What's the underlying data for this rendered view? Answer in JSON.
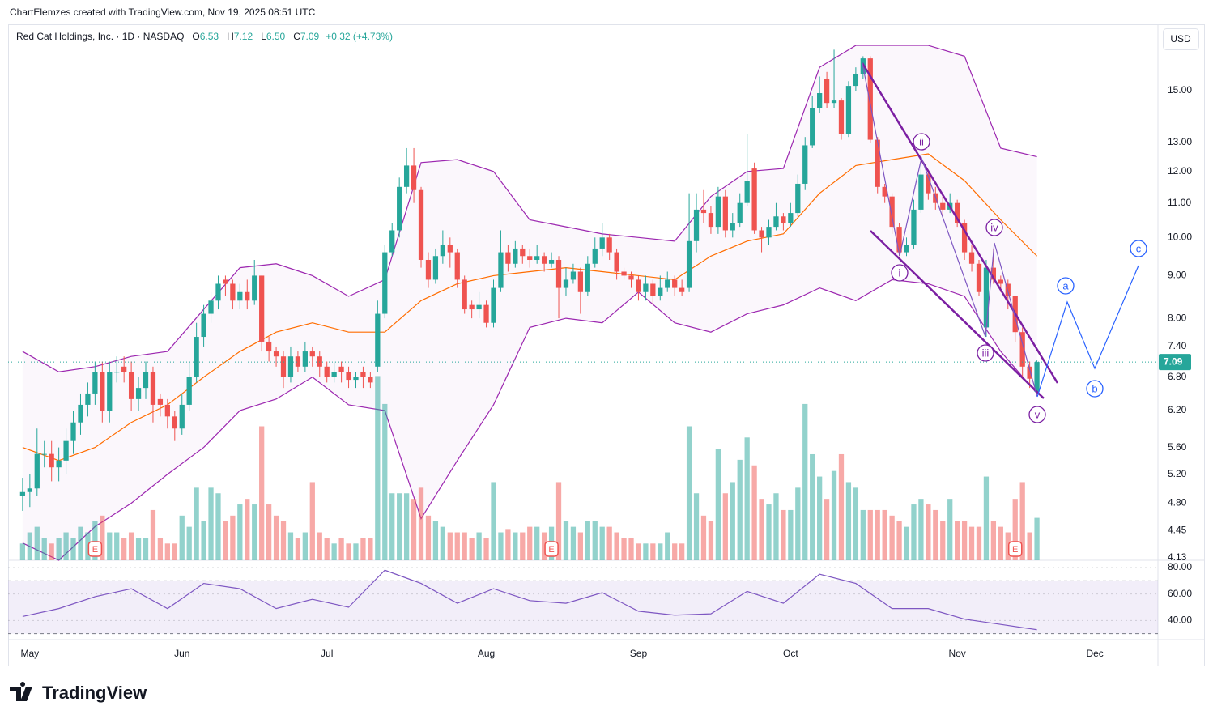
{
  "header": {
    "attribution": "ChartElemzes created with TradingView.com, Nov 19, 2025 08:51 UTC"
  },
  "chart_data": {
    "type": "candlestick",
    "title": "Red Cat Holdings, Inc. · 1D · NASDAQ",
    "legend": [
      {
        "label": "O",
        "value": "6.53"
      },
      {
        "label": "H",
        "value": "7.12"
      },
      {
        "label": "L",
        "value": "6.50"
      },
      {
        "label": "C",
        "value": "7.09"
      }
    ],
    "change": "+0.32 (+4.73%)",
    "currency": "USD",
    "colors": {
      "up": "#26a69a",
      "down": "#ef5350"
    },
    "open": [
      4.9,
      4.95,
      5.0,
      5.5,
      5.5,
      5.3,
      5.4,
      5.7,
      6.0,
      6.3,
      6.5,
      6.9,
      6.2,
      6.9,
      7.0,
      6.9,
      6.4,
      6.6,
      6.9,
      6.4,
      6.3,
      6.1,
      5.9,
      6.3,
      6.8,
      7.6,
      8.1,
      8.4,
      8.9,
      8.8,
      8.4,
      8.6,
      8.4,
      9.0,
      7.5,
      7.3,
      7.2,
      6.8,
      7.2,
      7.0,
      7.3,
      7.2,
      7.0,
      6.8,
      7.0,
      6.9,
      6.75,
      6.9,
      6.8,
      7.0,
      8.1,
      9.6,
      10.2,
      11.5,
      12.2,
      11.4,
      9.4,
      8.9,
      9.5,
      9.8,
      9.6,
      8.9,
      8.3,
      8.2,
      8.3,
      7.9,
      8.7,
      9.6,
      9.3,
      9.7,
      9.5,
      9.4,
      9.5,
      9.3,
      9.4,
      8.7,
      8.9,
      9.1,
      8.6,
      9.3,
      9.7,
      10.0,
      9.6,
      9.1,
      9.0,
      8.9,
      8.6,
      8.8,
      8.5,
      8.7,
      8.9,
      8.7,
      8.7,
      9.9,
      10.8,
      10.7,
      10.3,
      11.2,
      10.2,
      10.4,
      11.0,
      12.1,
      10.2,
      10.0,
      10.3,
      10.6,
      10.4,
      10.7,
      11.6,
      12.9,
      14.3,
      15.5,
      14.5,
      14.6,
      13.3,
      15.2,
      15.7,
      16.4,
      13.1,
      11.5,
      11.2,
      10.3,
      9.6,
      9.8,
      10.8,
      11.9,
      11.3,
      11.0,
      10.8,
      11.0,
      10.4,
      9.6,
      9.3,
      7.8,
      9.2,
      8.9,
      8.8,
      8.5,
      7.7,
      7.0,
      6.53
    ],
    "high": [
      5.15,
      5.2,
      5.9,
      5.7,
      5.7,
      5.6,
      5.9,
      6.2,
      6.5,
      6.7,
      7.1,
      7.1,
      7.1,
      7.2,
      7.2,
      7.1,
      6.8,
      7.1,
      7.0,
      6.5,
      6.4,
      6.2,
      6.5,
      7.1,
      7.9,
      8.3,
      8.6,
      9.0,
      9.0,
      8.9,
      8.8,
      8.9,
      9.4,
      9.0,
      7.6,
      7.4,
      7.3,
      7.4,
      7.3,
      7.5,
      7.4,
      7.3,
      7.1,
      7.1,
      7.1,
      7.0,
      6.9,
      7.0,
      6.9,
      8.4,
      9.8,
      10.4,
      11.8,
      12.8,
      12.8,
      11.5,
      9.6,
      9.7,
      10.2,
      10.0,
      9.7,
      9.0,
      8.4,
      8.6,
      8.4,
      8.9,
      10.2,
      9.8,
      9.9,
      9.8,
      9.7,
      9.8,
      9.6,
      9.6,
      9.5,
      9.2,
      9.3,
      9.2,
      9.5,
      10.0,
      10.4,
      10.1,
      9.7,
      9.2,
      9.1,
      9.0,
      9.0,
      8.9,
      9.0,
      9.1,
      9.0,
      8.9,
      11.3,
      11.3,
      11.4,
      10.9,
      11.5,
      11.4,
      10.7,
      11.3,
      13.3,
      12.3,
      10.3,
      10.5,
      11.0,
      10.7,
      11.0,
      11.9,
      13.2,
      14.8,
      15.6,
      15.8,
      16.8,
      14.7,
      15.4,
      16.0,
      16.5,
      16.5,
      13.2,
      11.6,
      11.3,
      10.4,
      10.0,
      11.1,
      12.3,
      12.0,
      11.5,
      11.2,
      11.3,
      11.1,
      10.5,
      9.8,
      9.4,
      9.4,
      9.7,
      9.0,
      8.9,
      8.5,
      7.8,
      7.1,
      7.12
    ],
    "low": [
      4.7,
      4.75,
      4.9,
      5.3,
      5.1,
      5.1,
      5.2,
      5.5,
      5.8,
      6.1,
      6.3,
      6.0,
      6.0,
      6.7,
      6.7,
      6.2,
      6.2,
      6.4,
      6.0,
      6.1,
      5.9,
      5.7,
      5.8,
      6.2,
      6.7,
      7.4,
      7.9,
      8.2,
      8.5,
      8.2,
      8.2,
      8.2,
      8.3,
      7.3,
      7.1,
      7.0,
      6.6,
      6.7,
      6.9,
      6.9,
      7.0,
      6.8,
      6.7,
      6.7,
      6.7,
      6.6,
      6.6,
      6.6,
      6.6,
      6.9,
      8.0,
      9.5,
      10.0,
      11.3,
      11.0,
      9.2,
      8.7,
      8.8,
      9.3,
      9.2,
      8.7,
      8.1,
      8.0,
      8.0,
      7.8,
      7.8,
      8.6,
      9.1,
      9.2,
      9.3,
      9.2,
      9.3,
      9.1,
      9.2,
      8.0,
      8.5,
      8.8,
      8.1,
      8.5,
      9.2,
      9.5,
      9.4,
      8.9,
      8.9,
      8.7,
      8.4,
      8.4,
      8.3,
      8.4,
      8.6,
      8.5,
      8.5,
      8.6,
      9.6,
      10.4,
      10.1,
      10.1,
      10.0,
      10.0,
      10.3,
      10.9,
      10.1,
      9.6,
      9.8,
      10.2,
      10.2,
      10.3,
      10.6,
      11.4,
      12.8,
      14.1,
      14.3,
      14.3,
      13.1,
      13.2,
      15.0,
      15.5,
      13.0,
      11.3,
      11.0,
      10.1,
      9.5,
      9.5,
      9.7,
      10.7,
      11.1,
      10.8,
      10.6,
      10.7,
      10.3,
      9.4,
      9.1,
      8.5,
      7.6,
      8.8,
      8.6,
      8.2,
      7.5,
      6.8,
      6.6,
      6.5
    ],
    "close": [
      4.95,
      5.0,
      5.5,
      5.5,
      5.3,
      5.4,
      5.7,
      6.0,
      6.3,
      6.5,
      6.9,
      6.2,
      6.9,
      6.9,
      6.9,
      6.4,
      6.6,
      6.9,
      6.3,
      6.3,
      6.1,
      5.9,
      6.3,
      6.8,
      7.6,
      8.1,
      8.4,
      8.8,
      8.8,
      8.4,
      8.6,
      8.4,
      9.0,
      7.5,
      7.3,
      7.2,
      6.8,
      7.2,
      7.0,
      7.3,
      7.2,
      7.0,
      6.8,
      6.9,
      6.9,
      6.75,
      6.8,
      6.8,
      6.7,
      8.1,
      9.6,
      10.2,
      11.5,
      12.2,
      11.4,
      9.4,
      8.9,
      9.5,
      9.8,
      9.6,
      8.9,
      8.2,
      8.2,
      8.3,
      7.9,
      8.7,
      9.6,
      9.3,
      9.7,
      9.5,
      9.4,
      9.5,
      9.3,
      9.4,
      8.7,
      8.9,
      9.1,
      8.6,
      9.3,
      9.7,
      10.0,
      9.6,
      9.1,
      9.0,
      8.9,
      8.6,
      8.8,
      8.5,
      8.7,
      8.9,
      8.7,
      8.6,
      9.9,
      10.8,
      10.7,
      10.3,
      11.2,
      10.2,
      10.4,
      11.0,
      11.7,
      10.2,
      10.0,
      10.3,
      10.6,
      10.4,
      10.7,
      11.6,
      12.9,
      14.3,
      14.9,
      14.5,
      14.6,
      13.3,
      15.2,
      15.7,
      16.4,
      13.1,
      11.5,
      11.2,
      10.3,
      9.6,
      9.8,
      10.8,
      11.9,
      11.3,
      11.0,
      10.8,
      11.0,
      10.4,
      9.6,
      9.3,
      8.6,
      9.2,
      8.9,
      8.8,
      8.5,
      7.7,
      7.0,
      6.77,
      7.09
    ],
    "xlim": [
      -2,
      156.7
    ],
    "xticks": [
      {
        "value": 1,
        "label": "May"
      },
      {
        "value": 22,
        "label": "Jun"
      },
      {
        "value": 42,
        "label": "Jul"
      },
      {
        "value": 64,
        "label": "Aug"
      },
      {
        "value": 85,
        "label": "Sep"
      },
      {
        "value": 106,
        "label": "Oct"
      },
      {
        "value": 129,
        "label": "Nov"
      },
      {
        "value": 148,
        "label": "Dec"
      }
    ],
    "ylim": [
      4.1,
      18.02
    ],
    "log_scale": true,
    "grid": false,
    "yticks": [
      {
        "value": 15,
        "label": "15.00"
      },
      {
        "value": 13,
        "label": "13.00"
      },
      {
        "value": 12,
        "label": "12.00"
      },
      {
        "value": 11,
        "label": "11.00"
      },
      {
        "value": 10,
        "label": "10.00"
      },
      {
        "value": 9,
        "label": "9.00"
      },
      {
        "value": 8,
        "label": "8.00"
      },
      {
        "value": 7.4,
        "label": "7.40"
      },
      {
        "value": 6.8,
        "label": "6.80"
      },
      {
        "value": 6.2,
        "label": "6.20"
      },
      {
        "value": 5.6,
        "label": "5.60"
      },
      {
        "value": 5.2,
        "label": "5.20"
      },
      {
        "value": 4.8,
        "label": "4.80"
      },
      {
        "value": 4.45,
        "label": "4.45"
      },
      {
        "value": 4.13,
        "label": "4.13"
      }
    ],
    "volume": {
      "ylim": [
        0,
        480
      ],
      "values": [
        15,
        25,
        30,
        20,
        15,
        20,
        25,
        20,
        30,
        25,
        35,
        40,
        25,
        25,
        20,
        25,
        20,
        20,
        45,
        20,
        15,
        15,
        40,
        30,
        65,
        35,
        65,
        60,
        35,
        40,
        50,
        55,
        50,
        120,
        50,
        40,
        35,
        25,
        20,
        25,
        70,
        25,
        20,
        15,
        20,
        15,
        15,
        20,
        20,
        165,
        140,
        60,
        60,
        60,
        55,
        65,
        40,
        35,
        30,
        25,
        25,
        25,
        20,
        25,
        20,
        70,
        25,
        28,
        25,
        25,
        30,
        30,
        25,
        30,
        70,
        35,
        30,
        25,
        35,
        35,
        30,
        30,
        25,
        20,
        20,
        15,
        15,
        15,
        15,
        25,
        15,
        15,
        120,
        60,
        40,
        35,
        100,
        60,
        70,
        90,
        110,
        85,
        55,
        50,
        60,
        45,
        45,
        65,
        140,
        95,
        75,
        55,
        80,
        95,
        70,
        65,
        45,
        45,
        45,
        45,
        40,
        35,
        30,
        50,
        55,
        50,
        45,
        35,
        55,
        35,
        35,
        30,
        30,
        75,
        35,
        30,
        25,
        55,
        70,
        25,
        38
      ]
    },
    "bollinger": {
      "color": "#9c27b0",
      "basis_color": "#ff6d00",
      "x": [
        0,
        5,
        10,
        15,
        20,
        25,
        30,
        35,
        40,
        45,
        50,
        55,
        60,
        65,
        70,
        75,
        80,
        85,
        90,
        95,
        100,
        105,
        110,
        115,
        120,
        125,
        130,
        135,
        140
      ],
      "upper": [
        7.3,
        6.9,
        7.0,
        7.2,
        7.3,
        8.2,
        9.2,
        9.3,
        9.0,
        8.5,
        8.9,
        12.3,
        12.4,
        12.0,
        10.5,
        10.3,
        10.1,
        10.0,
        9.9,
        11.2,
        12.0,
        12.1,
        16.0,
        17.0,
        17.0,
        17.0,
        16.5,
        12.8,
        12.5
      ],
      "basis": [
        5.6,
        5.4,
        5.6,
        6.0,
        6.3,
        6.8,
        7.3,
        7.7,
        7.9,
        7.7,
        7.7,
        8.4,
        8.8,
        9.0,
        9.1,
        9.2,
        9.1,
        9.0,
        8.9,
        9.5,
        9.9,
        10.1,
        11.3,
        12.2,
        12.4,
        12.6,
        11.7,
        10.5,
        9.5
      ],
      "lower": [
        4.3,
        4.1,
        4.5,
        4.8,
        5.2,
        5.6,
        6.2,
        6.4,
        6.8,
        6.3,
        6.2,
        4.6,
        5.4,
        6.3,
        7.8,
        8.0,
        7.9,
        8.6,
        7.9,
        7.7,
        8.1,
        8.3,
        8.7,
        8.4,
        8.9,
        8.8,
        8.5,
        7.3,
        6.5
      ]
    },
    "earnings": {
      "x": [
        10,
        73,
        137
      ],
      "label": "E"
    },
    "rsi": {
      "color": "#7e57c2",
      "ylim": [
        25.5,
        85.5
      ],
      "bands": [
        30,
        70
      ],
      "yticks": [
        {
          "value": 80,
          "label": "80.00"
        },
        {
          "value": 60,
          "label": "60.00"
        },
        {
          "value": 40,
          "label": "40.00"
        }
      ],
      "x": [
        0,
        5,
        10,
        15,
        20,
        25,
        30,
        35,
        40,
        45,
        50,
        55,
        60,
        65,
        70,
        75,
        80,
        85,
        90,
        95,
        100,
        105,
        110,
        115,
        120,
        125,
        130,
        135,
        140
      ],
      "values": [
        43,
        49,
        58,
        64,
        49,
        68,
        64,
        49,
        56,
        50,
        78,
        68,
        53,
        64,
        55,
        53,
        61,
        47,
        44,
        45,
        62,
        53,
        75,
        68,
        49,
        49,
        41,
        37,
        33
      ]
    },
    "annotations": {
      "waves": [
        "i",
        "ii",
        "iii",
        "iv",
        "v"
      ],
      "projection": [
        "a",
        "b",
        "c"
      ]
    }
  },
  "footer": {
    "logo": "TradingView"
  }
}
